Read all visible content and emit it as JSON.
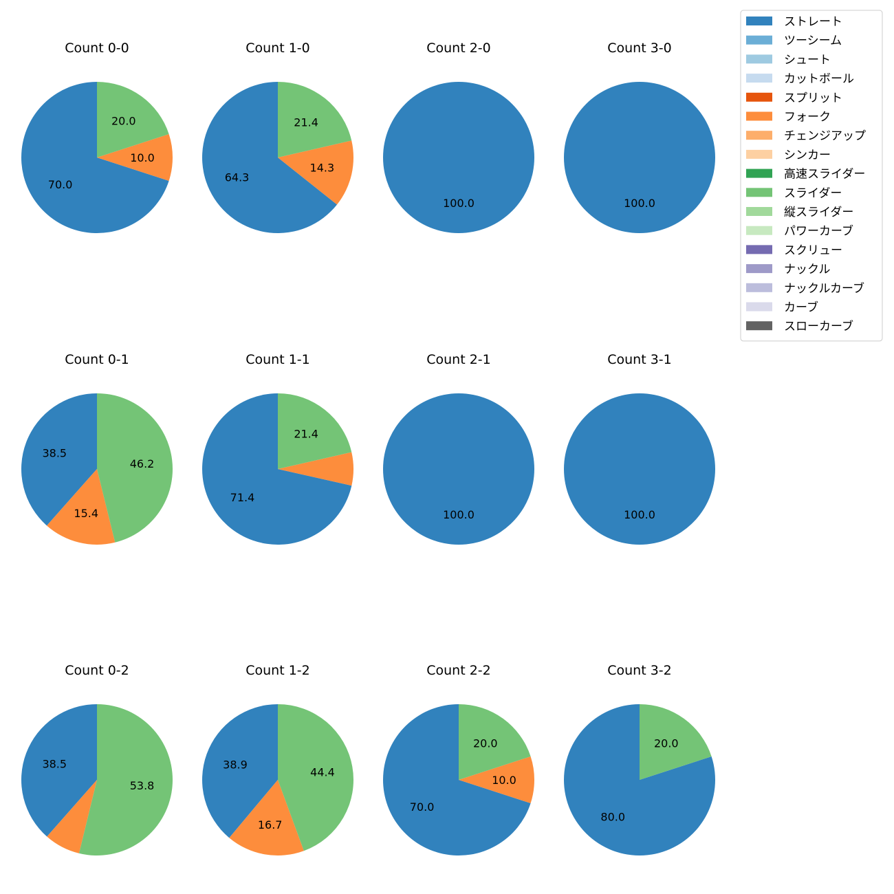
{
  "chart_data": {
    "type": "pie",
    "legend": {
      "placement": "top-right",
      "entries": [
        {
          "name": "ストレート",
          "color": "#3182bd"
        },
        {
          "name": "ツーシーム",
          "color": "#6baed6"
        },
        {
          "name": "シュート",
          "color": "#9ecae1"
        },
        {
          "name": "カットボール",
          "color": "#c6dbef"
        },
        {
          "name": "スプリット",
          "color": "#e6550d"
        },
        {
          "name": "フォーク",
          "color": "#fd8d3c"
        },
        {
          "name": "チェンジアップ",
          "color": "#fdae6b"
        },
        {
          "name": "シンカー",
          "color": "#fdd0a2"
        },
        {
          "name": "高速スライダー",
          "color": "#31a354"
        },
        {
          "name": "スライダー",
          "color": "#74c476"
        },
        {
          "name": "縦スライダー",
          "color": "#a1d99b"
        },
        {
          "name": "パワーカーブ",
          "color": "#c7e9c0"
        },
        {
          "name": "スクリュー",
          "color": "#756bb1"
        },
        {
          "name": "ナックル",
          "color": "#9e9ac8"
        },
        {
          "name": "ナックルカーブ",
          "color": "#bcbddc"
        },
        {
          "name": "カーブ",
          "color": "#dadaeb"
        },
        {
          "name": "スローカーブ",
          "color": "#636363"
        }
      ]
    },
    "charts": [
      {
        "title": "Count 0-0",
        "slices": [
          {
            "pitch": "ストレート",
            "value": 70.0,
            "label": "70.0"
          },
          {
            "pitch": "フォーク",
            "value": 10.0,
            "label": "10.0"
          },
          {
            "pitch": "スライダー",
            "value": 20.0,
            "label": "20.0"
          }
        ]
      },
      {
        "title": "Count 1-0",
        "slices": [
          {
            "pitch": "ストレート",
            "value": 64.3,
            "label": "64.3"
          },
          {
            "pitch": "フォーク",
            "value": 14.3,
            "label": "14.3"
          },
          {
            "pitch": "スライダー",
            "value": 21.4,
            "label": "21.4"
          }
        ]
      },
      {
        "title": "Count 2-0",
        "slices": [
          {
            "pitch": "ストレート",
            "value": 100.0,
            "label": "100.0"
          }
        ]
      },
      {
        "title": "Count 3-0",
        "slices": [
          {
            "pitch": "ストレート",
            "value": 100.0,
            "label": "100.0"
          }
        ]
      },
      {
        "title": "Count 0-1",
        "slices": [
          {
            "pitch": "ストレート",
            "value": 38.5,
            "label": "38.5"
          },
          {
            "pitch": "フォーク",
            "value": 15.4,
            "label": "15.4"
          },
          {
            "pitch": "スライダー",
            "value": 46.2,
            "label": "46.2"
          }
        ]
      },
      {
        "title": "Count 1-1",
        "slices": [
          {
            "pitch": "ストレート",
            "value": 71.4,
            "label": "71.4"
          },
          {
            "pitch": "フォーク",
            "value": 7.1,
            "label": ""
          },
          {
            "pitch": "スライダー",
            "value": 21.4,
            "label": "21.4"
          }
        ]
      },
      {
        "title": "Count 2-1",
        "slices": [
          {
            "pitch": "ストレート",
            "value": 100.0,
            "label": "100.0"
          }
        ]
      },
      {
        "title": "Count 3-1",
        "slices": [
          {
            "pitch": "ストレート",
            "value": 100.0,
            "label": "100.0"
          }
        ]
      },
      {
        "title": "Count 0-2",
        "slices": [
          {
            "pitch": "ストレート",
            "value": 38.5,
            "label": "38.5"
          },
          {
            "pitch": "フォーク",
            "value": 7.7,
            "label": ""
          },
          {
            "pitch": "スライダー",
            "value": 53.8,
            "label": "53.8"
          }
        ]
      },
      {
        "title": "Count 1-2",
        "slices": [
          {
            "pitch": "ストレート",
            "value": 38.9,
            "label": "38.9"
          },
          {
            "pitch": "フォーク",
            "value": 16.7,
            "label": "16.7"
          },
          {
            "pitch": "スライダー",
            "value": 44.4,
            "label": "44.4"
          }
        ]
      },
      {
        "title": "Count 2-2",
        "slices": [
          {
            "pitch": "ストレート",
            "value": 70.0,
            "label": "70.0"
          },
          {
            "pitch": "フォーク",
            "value": 10.0,
            "label": "10.0"
          },
          {
            "pitch": "スライダー",
            "value": 20.0,
            "label": "20.0"
          }
        ]
      },
      {
        "title": "Count 3-2",
        "slices": [
          {
            "pitch": "ストレート",
            "value": 80.0,
            "label": "80.0"
          },
          {
            "pitch": "スライダー",
            "value": 20.0,
            "label": "20.0"
          }
        ]
      }
    ]
  }
}
